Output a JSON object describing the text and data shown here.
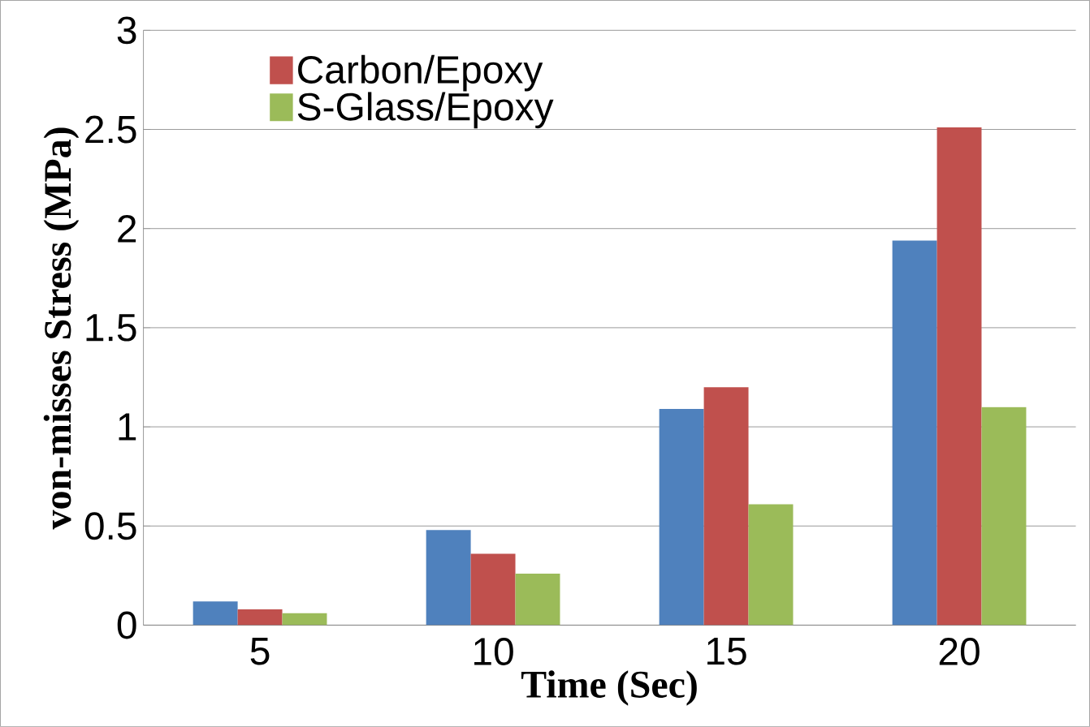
{
  "chart_data": {
    "type": "bar",
    "xlabel": "Time (Sec)",
    "ylabel": "von-misses Stress  (MPa)",
    "categories": [
      "5",
      "10",
      "15",
      "20"
    ],
    "series": [
      {
        "color": "#4f81bd",
        "values": [
          0.12,
          0.48,
          1.09,
          1.94
        ]
      },
      {
        "name": "Carbon/Epoxy",
        "color": "#c0504d",
        "values": [
          0.08,
          0.36,
          1.2,
          2.51
        ]
      },
      {
        "name": "S-Glass/Epoxy",
        "color": "#9bbb59",
        "values": [
          0.06,
          0.26,
          0.61,
          1.1
        ]
      }
    ],
    "ylim": [
      0,
      3
    ],
    "yticks": [
      0,
      0.5,
      1,
      1.5,
      2,
      2.5,
      3
    ],
    "grid": "y",
    "legend": "top left"
  }
}
